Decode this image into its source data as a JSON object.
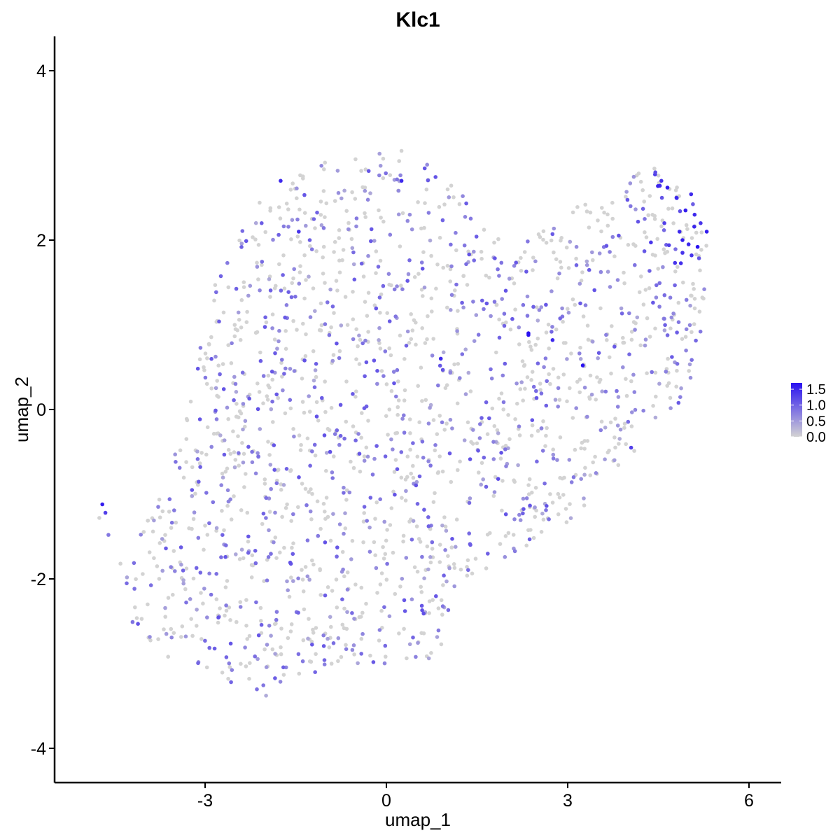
{
  "chart_data": {
    "type": "scatter",
    "title": "Klc1",
    "xlabel": "umap_1",
    "ylabel": "umap_2",
    "xlim": [
      -5.4,
      6.6
    ],
    "ylim": [
      -4.4,
      4.4
    ],
    "xticks": [
      -3,
      0,
      3,
      6
    ],
    "yticks": [
      -4,
      -2,
      0,
      2,
      4
    ],
    "grid": false,
    "color_scale": {
      "low_color": "#d3d3d3",
      "high_color": "#2a12f0",
      "min": 0,
      "max": 1.7,
      "breaks": [
        0.0,
        0.5,
        1.0,
        1.5
      ],
      "break_labels": [
        "0.0",
        "0.5",
        "1.0",
        "1.5"
      ],
      "legend_position": "right"
    },
    "point_count_estimate": 1800,
    "expression_fraction_estimate": 0.42,
    "points": [
      {
        "x": -4.7,
        "y": -1.12,
        "value": 1.6
      },
      {
        "x": -4.65,
        "y": -1.22,
        "value": 1.3
      },
      {
        "x": -4.75,
        "y": -1.28,
        "value": 0.0
      },
      {
        "x": -4.6,
        "y": -1.48,
        "value": 0.8
      },
      {
        "x": -4.4,
        "y": -1.82,
        "value": 0.0
      },
      {
        "x": -1.75,
        "y": 2.7,
        "value": 1.5
      },
      {
        "x": 0.25,
        "y": 2.7,
        "value": 1.5
      },
      {
        "x": -1.45,
        "y": 2.1,
        "value": 1.4
      },
      {
        "x": 0.9,
        "y": 0.6,
        "value": 1.5
      },
      {
        "x": 2.35,
        "y": 0.88,
        "value": 1.7
      },
      {
        "x": 2.35,
        "y": 0.9,
        "value": 1.7
      },
      {
        "x": 2.75,
        "y": 0.82,
        "value": 1.5
      },
      {
        "x": 3.25,
        "y": 0.52,
        "value": 1.7
      },
      {
        "x": 4.05,
        "y": -0.45,
        "value": 1.3
      },
      {
        "x": 1.85,
        "y": -0.82,
        "value": 1.2
      },
      {
        "x": 4.45,
        "y": 2.8,
        "value": 1.2
      },
      {
        "x": 4.55,
        "y": 2.7,
        "value": 1.4
      },
      {
        "x": 4.65,
        "y": 2.62,
        "value": 1.6
      },
      {
        "x": 4.8,
        "y": 2.5,
        "value": 1.5
      },
      {
        "x": 4.95,
        "y": 2.35,
        "value": 1.6
      },
      {
        "x": 5.1,
        "y": 2.3,
        "value": 1.5
      },
      {
        "x": 5.2,
        "y": 2.2,
        "value": 1.4
      },
      {
        "x": 5.3,
        "y": 2.1,
        "value": 1.6
      },
      {
        "x": 4.85,
        "y": 2.1,
        "value": 1.5
      },
      {
        "x": 4.9,
        "y": 2.0,
        "value": 1.6
      },
      {
        "x": 5.0,
        "y": 1.95,
        "value": 1.5
      },
      {
        "x": 5.15,
        "y": 1.92,
        "value": 1.7
      },
      {
        "x": 4.9,
        "y": 1.85,
        "value": 1.4
      },
      {
        "x": 5.05,
        "y": 1.82,
        "value": 1.4
      },
      {
        "x": 4.6,
        "y": 2.2,
        "value": 1.3
      }
    ]
  }
}
